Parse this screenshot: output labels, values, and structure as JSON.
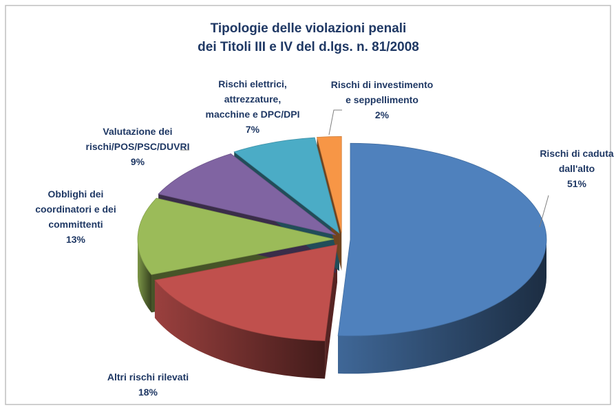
{
  "chart_data": {
    "type": "pie",
    "title": [
      "Tipologie delle violazioni penali",
      "dei Titoli III e IV del d.lgs. n. 81/2008"
    ],
    "categories": [
      [
        "Rischi di caduta",
        "dall'alto"
      ],
      [
        "Altri rischi rilevati"
      ],
      [
        "Obblighi dei",
        "coordinatori e dei",
        "committenti"
      ],
      [
        "Valutazione dei",
        "rischi/POS/PSC/DUVRI"
      ],
      [
        "Rischi elettrici,",
        "attrezzature,",
        "macchine e DPC/DPI"
      ],
      [
        "Rischi di investimento",
        "e seppellimento"
      ]
    ],
    "values": [
      51,
      18,
      13,
      9,
      7,
      2
    ],
    "value_labels": [
      "51%",
      "18%",
      "13%",
      "9%",
      "7%",
      "2%"
    ],
    "colors": [
      "#4f81bd",
      "#c0504d",
      "#9bbb59",
      "#8064a2",
      "#4bacc6",
      "#f79646"
    ]
  }
}
